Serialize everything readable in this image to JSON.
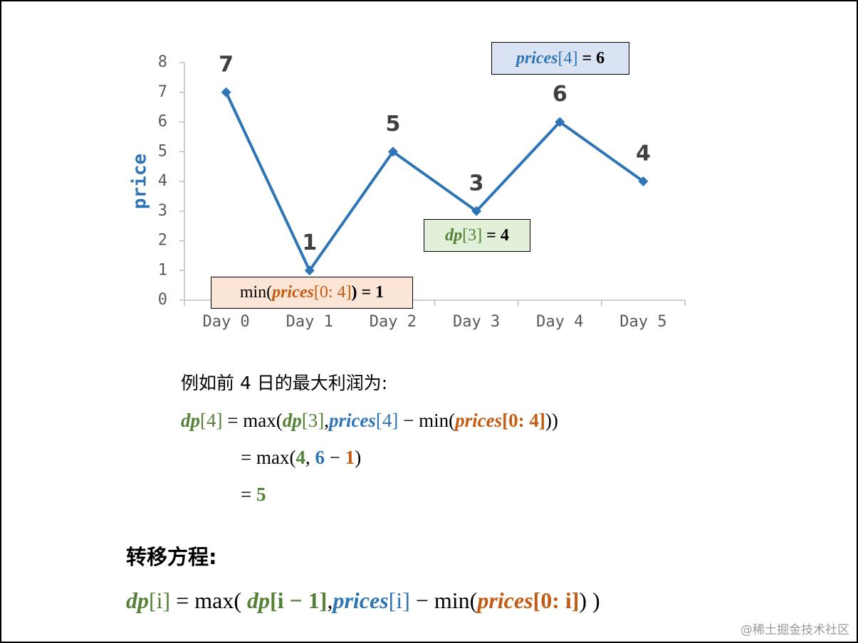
{
  "chart_data": {
    "type": "line",
    "ylabel": "price",
    "categories": [
      "Day 0",
      "Day 1",
      "Day 2",
      "Day 3",
      "Day 4",
      "Day 5"
    ],
    "values": [
      7,
      1,
      5,
      3,
      6,
      4
    ],
    "color": "#2e75b6",
    "ylim": [
      0,
      8
    ],
    "yticks": [
      0,
      1,
      2,
      3,
      4,
      5,
      6,
      7,
      8
    ],
    "annotations": [
      {
        "fill": "#dae3f3",
        "segments": [
          {
            "text": "prices",
            "color": "#2e75b6",
            "font": "bold italic"
          },
          {
            "text": "[4]",
            "color": "#2e75b6",
            "font": "normal"
          },
          {
            "text": " = 6",
            "color": "#000000",
            "font": "bold"
          }
        ]
      },
      {
        "fill": "#e2efd9",
        "segments": [
          {
            "text": "dp",
            "color": "#548235",
            "font": "bold italic"
          },
          {
            "text": "[3]",
            "color": "#548235",
            "font": "normal"
          },
          {
            "text": " = 4",
            "color": "#000000",
            "font": "bold"
          }
        ]
      },
      {
        "fill": "#fbe5d6",
        "segments": [
          {
            "text": "min(",
            "color": "#000000",
            "font": "normal"
          },
          {
            "text": "prices",
            "color": "#c55a11",
            "font": "bold italic"
          },
          {
            "text": "[0: 4]",
            "color": "#c55a11",
            "font": "normal"
          },
          {
            "text": ") = 1",
            "color": "#000000",
            "font": "bold"
          }
        ]
      }
    ]
  },
  "explanation": {
    "intro": [
      {
        "text": "例如前 4 日的最大利润为:",
        "color": "#000000",
        "font": "normal"
      }
    ],
    "steps": [
      [
        {
          "text": "dp",
          "color": "#548235",
          "font": "bold italic"
        },
        {
          "text": "[4]",
          "color": "#548235",
          "font": "normal"
        },
        {
          "text": " = max(",
          "color": "#000000",
          "font": "normal"
        },
        {
          "text": "dp",
          "color": "#548235",
          "font": "bold italic"
        },
        {
          "text": "[3]",
          "color": "#548235",
          "font": "normal"
        },
        {
          "text": ",",
          "color": "#000000",
          "font": "normal"
        },
        {
          "text": "prices",
          "color": "#2e75b6",
          "font": "bold italic"
        },
        {
          "text": "[4]",
          "color": "#2e75b6",
          "font": "normal"
        },
        {
          "text": " − min(",
          "color": "#000000",
          "font": "normal"
        },
        {
          "text": "prices",
          "color": "#c55a11",
          "font": "bold italic"
        },
        {
          "text": "[0: 4]",
          "color": "#c55a11",
          "font": "bold"
        },
        {
          "text": "))",
          "color": "#000000",
          "font": "normal"
        }
      ],
      [
        {
          "text": "= max(",
          "color": "#000000",
          "font": "normal"
        },
        {
          "text": "4",
          "color": "#548235",
          "font": "bold"
        },
        {
          "text": ", ",
          "color": "#000000",
          "font": "normal"
        },
        {
          "text": "6",
          "color": "#2e75b6",
          "font": "bold"
        },
        {
          "text": " − ",
          "color": "#000000",
          "font": "normal"
        },
        {
          "text": "1",
          "color": "#c55a11",
          "font": "bold"
        },
        {
          "text": ")",
          "color": "#000000",
          "font": "normal"
        }
      ],
      [
        {
          "text": "= ",
          "color": "#000000",
          "font": "normal"
        },
        {
          "text": "5",
          "color": "#548235",
          "font": "bold"
        }
      ]
    ],
    "heading": "转移方程:",
    "formula": [
      {
        "text": "dp",
        "color": "#548235",
        "font": "bold italic"
      },
      {
        "text": "[i]",
        "color": "#548235",
        "font": "normal"
      },
      {
        "text": " = max( ",
        "color": "#000000",
        "font": "normal"
      },
      {
        "text": "dp",
        "color": "#548235",
        "font": "bold italic"
      },
      {
        "text": "[i − 1]",
        "color": "#548235",
        "font": "bold"
      },
      {
        "text": ",",
        "color": "#000000",
        "font": "normal"
      },
      {
        "text": "prices",
        "color": "#2e75b6",
        "font": "bold italic"
      },
      {
        "text": "[i]",
        "color": "#2e75b6",
        "font": "normal"
      },
      {
        "text": " − min(",
        "color": "#000000",
        "font": "normal"
      },
      {
        "text": "prices",
        "color": "#c55a11",
        "font": "bold italic"
      },
      {
        "text": "[0: i]",
        "color": "#c55a11",
        "font": "bold"
      },
      {
        "text": ") )",
        "color": "#000000",
        "font": "normal"
      }
    ]
  },
  "watermark": "@稀土掘金技术社区"
}
